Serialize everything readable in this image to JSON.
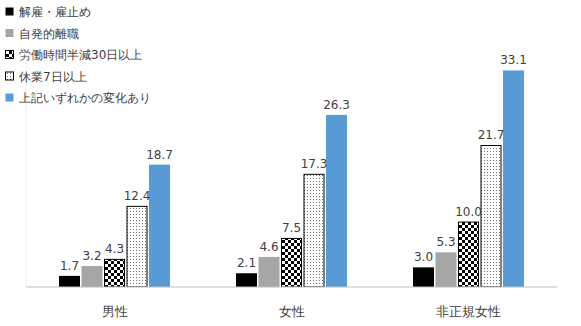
{
  "chart_data": {
    "type": "bar",
    "categories": [
      "男性",
      "女性",
      "非正規女性"
    ],
    "series": [
      {
        "name": "解雇・雇止め",
        "color": "#000000",
        "values": [
          1.7,
          2.1,
          3.0
        ],
        "value_labels": [
          "1.7",
          "2.1",
          "3.0"
        ]
      },
      {
        "name": "自発的離職",
        "color": "#a6a6a6",
        "values": [
          3.2,
          4.6,
          5.3
        ]
      },
      {
        "name": "労働時間半減30日以上",
        "color": "#000000",
        "values": [
          4.3,
          7.5,
          10.0
        ],
        "value_labels": [
          "4.3",
          "7.5",
          "10.0"
        ]
      },
      {
        "name": "休業7日以上",
        "color": "#000000",
        "values": [
          12.4,
          17.3,
          21.7
        ]
      },
      {
        "name": "上記いずれかの変化あり",
        "color": "#5b9bd5",
        "values": [
          18.7,
          26.3,
          33.1
        ]
      }
    ],
    "ylim": [
      0,
      35
    ],
    "yticks": [],
    "tick_labels": "x",
    "grid": false,
    "legend": "top-left",
    "data_labels": true
  }
}
